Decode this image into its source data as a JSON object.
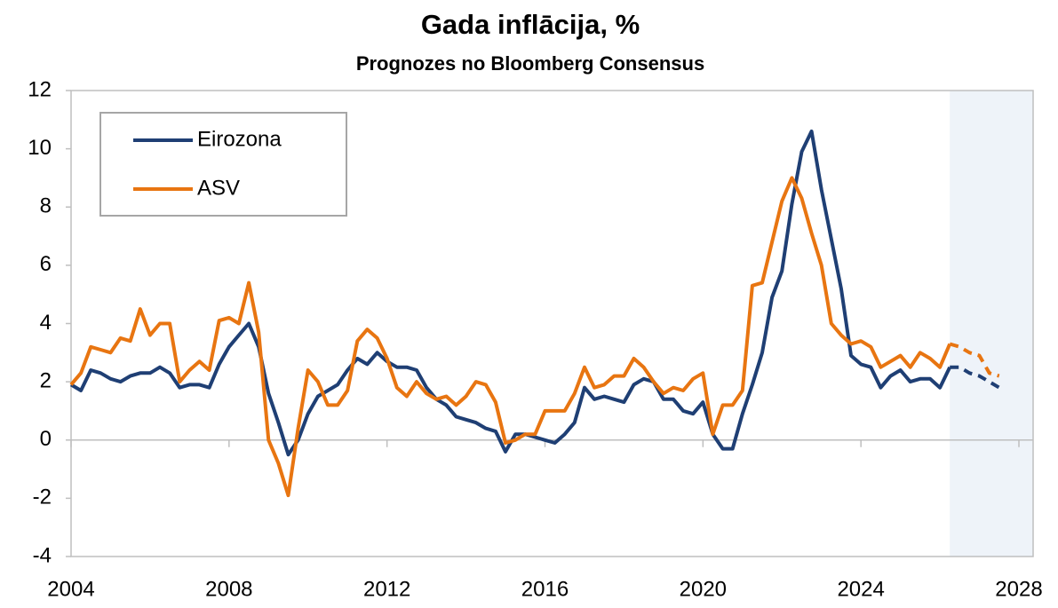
{
  "chart_data": {
    "type": "line",
    "title": "Gada inflācija, %",
    "subtitle": "Prognozes no Bloomberg Consensus",
    "x": [
      2004,
      2004.25,
      2004.5,
      2004.75,
      2005,
      2005.25,
      2005.5,
      2005.75,
      2006,
      2006.25,
      2006.5,
      2006.75,
      2007,
      2007.25,
      2007.5,
      2007.75,
      2008,
      2008.25,
      2008.5,
      2008.75,
      2009,
      2009.25,
      2009.5,
      2009.75,
      2010,
      2010.25,
      2010.5,
      2010.75,
      2011,
      2011.25,
      2011.5,
      2011.75,
      2012,
      2012.25,
      2012.5,
      2012.75,
      2013,
      2013.25,
      2013.5,
      2013.75,
      2014,
      2014.25,
      2014.5,
      2014.75,
      2015,
      2015.25,
      2015.5,
      2015.75,
      2016,
      2016.25,
      2016.5,
      2016.75,
      2017,
      2017.25,
      2017.5,
      2017.75,
      2018,
      2018.25,
      2018.5,
      2018.75,
      2019,
      2019.25,
      2019.5,
      2019.75,
      2020,
      2020.25,
      2020.5,
      2020.75,
      2021,
      2021.25,
      2021.5,
      2021.75,
      2022,
      2022.25,
      2022.5,
      2022.75,
      2023,
      2023.25,
      2023.5,
      2023.75,
      2024,
      2024.25,
      2024.5,
      2024.75,
      2025,
      2025.25,
      2025.5,
      2025.75,
      2026,
      2026.25,
      2026.5,
      2026.75,
      2027,
      2027.25,
      2027.5
    ],
    "series": [
      {
        "name": "Eirozona",
        "color": "#1f3f74",
        "values": [
          1.9,
          1.7,
          2.4,
          2.3,
          2.1,
          2.0,
          2.2,
          2.3,
          2.3,
          2.5,
          2.3,
          1.8,
          1.9,
          1.9,
          1.8,
          2.6,
          3.2,
          3.6,
          4.0,
          3.2,
          1.6,
          0.6,
          -0.5,
          0.0,
          0.9,
          1.5,
          1.7,
          1.9,
          2.4,
          2.8,
          2.6,
          3.0,
          2.7,
          2.5,
          2.5,
          2.4,
          1.8,
          1.4,
          1.2,
          0.8,
          0.7,
          0.6,
          0.4,
          0.3,
          -0.4,
          0.2,
          0.2,
          0.1,
          0.0,
          -0.1,
          0.2,
          0.6,
          1.8,
          1.4,
          1.5,
          1.4,
          1.3,
          1.9,
          2.1,
          2.0,
          1.4,
          1.4,
          1.0,
          0.9,
          1.3,
          0.2,
          -0.3,
          -0.3,
          0.9,
          1.9,
          3.0,
          4.9,
          5.8,
          8.1,
          9.9,
          10.6,
          8.6,
          6.9,
          5.2,
          2.9,
          2.6,
          2.5,
          1.8,
          2.2,
          2.4,
          2.0,
          2.1,
          2.1,
          1.8,
          2.5,
          2.5,
          2.3,
          2.2,
          2.0,
          1.8
        ]
      },
      {
        "name": "ASV",
        "color": "#e87511",
        "values": [
          1.9,
          2.3,
          3.2,
          3.1,
          3.0,
          3.5,
          3.4,
          4.5,
          3.6,
          4.0,
          4.0,
          2.0,
          2.4,
          2.7,
          2.4,
          4.1,
          4.2,
          4.0,
          5.4,
          3.7,
          0.0,
          -0.8,
          -1.9,
          0.4,
          2.4,
          2.0,
          1.2,
          1.2,
          1.7,
          3.4,
          3.8,
          3.5,
          2.8,
          1.8,
          1.5,
          2.0,
          1.6,
          1.4,
          1.5,
          1.2,
          1.5,
          2.0,
          1.9,
          1.3,
          -0.1,
          0.0,
          0.2,
          0.2,
          1.0,
          1.0,
          1.0,
          1.6,
          2.5,
          1.8,
          1.9,
          2.2,
          2.2,
          2.8,
          2.5,
          2.0,
          1.6,
          1.8,
          1.7,
          2.1,
          2.3,
          0.2,
          1.2,
          1.2,
          1.7,
          5.3,
          5.4,
          6.8,
          8.2,
          9.0,
          8.3,
          7.1,
          6.0,
          4.0,
          3.6,
          3.3,
          3.4,
          3.2,
          2.5,
          2.7,
          2.9,
          2.5,
          3.0,
          2.8,
          2.5,
          3.3,
          3.2,
          3.0,
          2.9,
          2.3,
          2.2
        ]
      }
    ],
    "forecast_start": 2026.25,
    "xlim": [
      2004,
      2028.36
    ],
    "xticks": [
      2004,
      2008,
      2012,
      2016,
      2020,
      2024,
      2028
    ],
    "ylim": [
      -4,
      12
    ],
    "yticks": [
      -4,
      -2,
      0,
      2,
      4,
      6,
      8,
      10,
      12
    ],
    "grid": false,
    "legend": "upper left"
  }
}
